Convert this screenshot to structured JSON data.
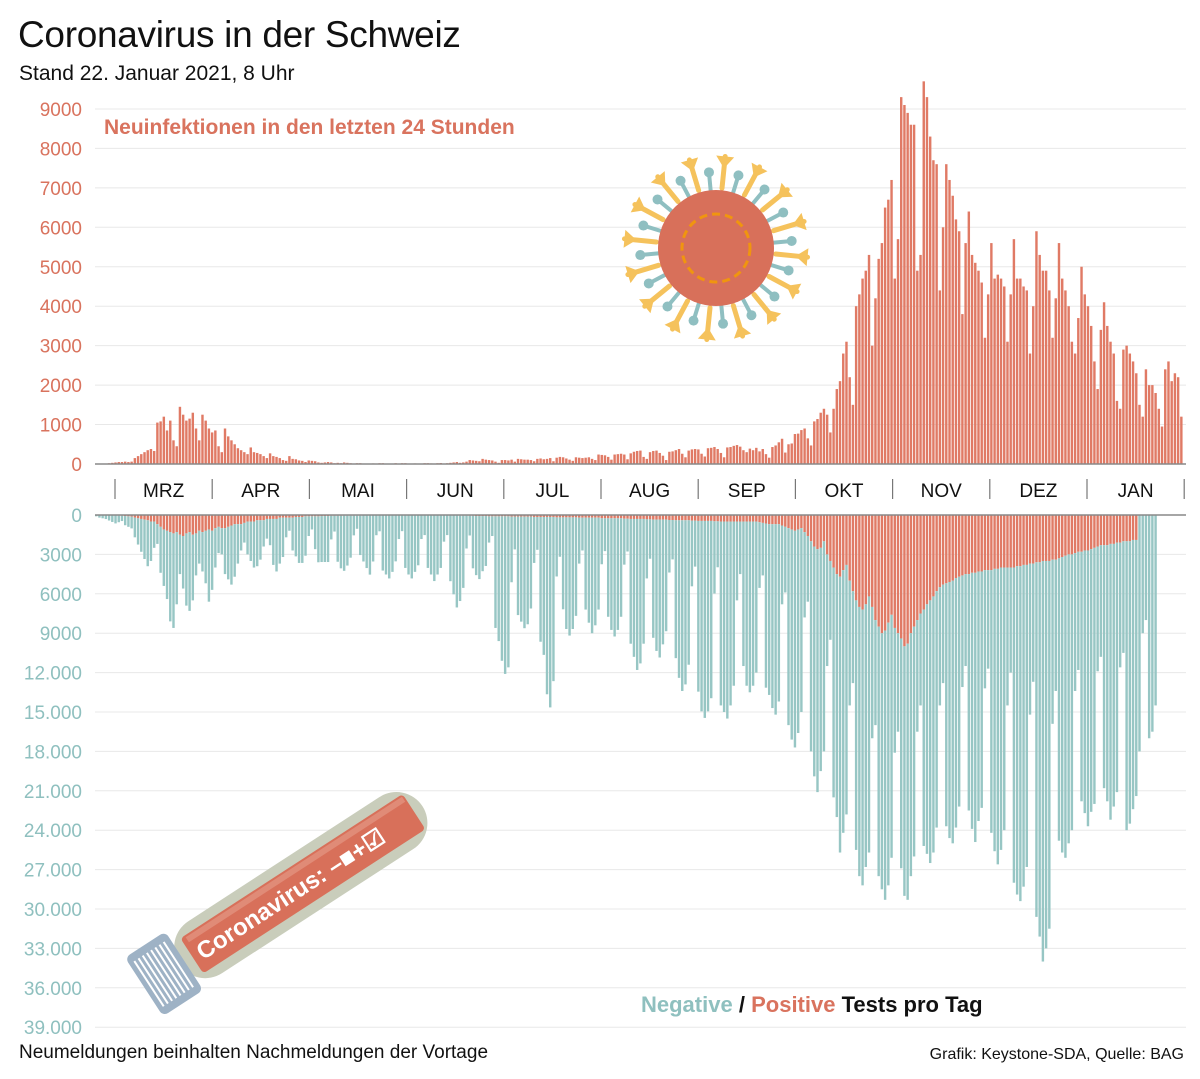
{
  "header": {
    "title": "Coronavirus in der Schweiz",
    "subtitle": "Stand 22. Januar 2021, 8 Uhr"
  },
  "footer": {
    "note": "Neumeldungen beinhalten Nachmeldungen der Vortage",
    "credit": "Grafik: Keystone-SDA, Quelle: BAG"
  },
  "colors": {
    "positive": "#e07a65",
    "negative": "#97c6c4",
    "axis_top_text": "#d9735e",
    "axis_bottom_text": "#8fc0bf"
  },
  "illustrations": {
    "virus": "coronavirus-icon",
    "test_tube": "test-tube-icon",
    "test_tube_label": "Coronavirus: –■+☑"
  },
  "chart_data": [
    {
      "type": "bar",
      "title": "Neuinfektionen in den letzten 24 Stunden",
      "xlabel": "",
      "ylabel": "",
      "ylim": [
        0,
        9000
      ],
      "yticks": [
        "0",
        "1000",
        "2000",
        "3000",
        "4000",
        "5000",
        "6000",
        "7000",
        "8000",
        "9000"
      ],
      "grid": true,
      "start_date": "2020-02-24",
      "end_date": "2021-01-21",
      "month_labels": [
        "MRZ",
        "APR",
        "MAI",
        "JUN",
        "JUL",
        "AUG",
        "SEP",
        "OKT",
        "NOV",
        "DEZ",
        "JAN"
      ],
      "values": [
        0,
        0,
        0,
        0,
        20,
        30,
        40,
        50,
        50,
        60,
        50,
        60,
        150,
        200,
        250,
        300,
        350,
        380,
        330,
        1050,
        1080,
        1200,
        850,
        1100,
        600,
        450,
        1450,
        1250,
        1100,
        1150,
        1300,
        900,
        600,
        1250,
        1100,
        900,
        800,
        850,
        450,
        300,
        900,
        700,
        600,
        500,
        400,
        350,
        300,
        250,
        420,
        300,
        280,
        250,
        200,
        150,
        270,
        200,
        180,
        150,
        100,
        80,
        200,
        130,
        120,
        90,
        80,
        50,
        90,
        80,
        70,
        40,
        30,
        40,
        50,
        40,
        20,
        30,
        20,
        40,
        30,
        20,
        10,
        20,
        20,
        10,
        5,
        10,
        15,
        10,
        20,
        20,
        10,
        5,
        10,
        20,
        10,
        20,
        20,
        10,
        10,
        15,
        5,
        10,
        20,
        20,
        15,
        10,
        20,
        25,
        10,
        20,
        30,
        40,
        50,
        30,
        40,
        60,
        100,
        90,
        80,
        70,
        130,
        110,
        100,
        90,
        60,
        30,
        100,
        100,
        90,
        110,
        60,
        130,
        120,
        110,
        110,
        100,
        70,
        130,
        140,
        120,
        130,
        150,
        70,
        160,
        180,
        170,
        140,
        110,
        80,
        170,
        160,
        150,
        160,
        170,
        130,
        100,
        240,
        230,
        220,
        180,
        110,
        240,
        250,
        260,
        240,
        120,
        270,
        310,
        330,
        340,
        180,
        130,
        300,
        330,
        340,
        280,
        210,
        100,
        310,
        320,
        350,
        380,
        260,
        170,
        340,
        370,
        380,
        370,
        260,
        190,
        400,
        410,
        430,
        380,
        280,
        170,
        420,
        430,
        460,
        480,
        440,
        350,
        300,
        390,
        350,
        410,
        320,
        380,
        250,
        160,
        430,
        470,
        550,
        640,
        290,
        500,
        520,
        760,
        770,
        860,
        900,
        650,
        470,
        1080,
        1140,
        1300,
        1400,
        1250,
        800,
        1400,
        1900,
        2100,
        2800,
        3100,
        2200,
        1500,
        4000,
        4300,
        4700,
        4900,
        5300,
        3000,
        4200,
        5200,
        5600,
        6500,
        6700,
        7200,
        4700,
        5700,
        9300,
        9100,
        8900,
        8600,
        8600,
        4900,
        5300,
        9700,
        9300,
        8300,
        7700,
        7600,
        4400,
        6000,
        7600,
        7200,
        6800,
        6200,
        5900,
        3800,
        5600,
        6400,
        5300,
        5100,
        4900,
        4600,
        3200,
        4300,
        5600,
        4700,
        4800,
        4700,
        4500,
        3100,
        4300,
        5700,
        4700,
        4700,
        4500,
        4400,
        2800,
        4000,
        5900,
        5300,
        4900,
        4900,
        4400,
        3200,
        4200,
        5600,
        4700,
        4400,
        4000,
        3100,
        2800,
        3700,
        5000,
        4300,
        4000,
        3500,
        2600,
        1900,
        3400,
        4100,
        3500,
        3100,
        2800,
        1600,
        1400,
        2900,
        3000,
        2800,
        2600,
        2300,
        1500,
        1200,
        2400,
        2000,
        2000,
        1800,
        1400,
        950,
        2400,
        2600,
        2100,
        2300,
        2200,
        1200
      ]
    },
    {
      "type": "bar",
      "stacked": true,
      "title": "Negative / Positive Tests pro Tag",
      "xlabel": "",
      "ylabel": "",
      "ylim": [
        0,
        39000
      ],
      "yticks": [
        "0",
        "3000",
        "6000",
        "9000",
        "12.000",
        "15.000",
        "18.000",
        "21.000",
        "24.000",
        "27.000",
        "30.000",
        "33.000",
        "36.000",
        "39.000"
      ],
      "grid": true,
      "inverted": true,
      "legend": {
        "negative": "Negative",
        "separator": "/",
        "positive": "Positive",
        "suffix": "Tests pro Tag",
        "placement": "bottom-right"
      },
      "series": [
        {
          "name": "Positive",
          "values": [
            0,
            0,
            0,
            10,
            20,
            30,
            40,
            50,
            60,
            80,
            100,
            120,
            200,
            250,
            300,
            350,
            400,
            500,
            500,
            700,
            900,
            1100,
            1200,
            1300,
            1400,
            1300,
            1500,
            1600,
            1400,
            1300,
            1500,
            1400,
            1200,
            1300,
            1200,
            1100,
            1200,
            1000,
            900,
            1000,
            1000,
            900,
            800,
            700,
            700,
            700,
            600,
            500,
            500,
            500,
            400,
            400,
            400,
            300,
            300,
            300,
            300,
            200,
            200,
            200,
            200,
            200,
            150,
            150,
            150,
            100,
            100,
            100,
            100,
            100,
            80,
            80,
            80,
            60,
            60,
            60,
            60,
            50,
            50,
            50,
            50,
            50,
            50,
            40,
            40,
            40,
            40,
            40,
            40,
            30,
            30,
            30,
            30,
            30,
            30,
            30,
            30,
            30,
            30,
            30,
            30,
            30,
            30,
            30,
            30,
            30,
            30,
            30,
            30,
            30,
            40,
            40,
            40,
            50,
            50,
            50,
            60,
            60,
            80,
            80,
            80,
            80,
            100,
            100,
            100,
            100,
            100,
            100,
            100,
            120,
            120,
            120,
            120,
            120,
            120,
            120,
            150,
            150,
            150,
            150,
            150,
            150,
            150,
            180,
            180,
            180,
            180,
            180,
            180,
            180,
            200,
            200,
            200,
            200,
            200,
            200,
            200,
            250,
            250,
            250,
            250,
            250,
            250,
            250,
            280,
            280,
            300,
            300,
            300,
            300,
            300,
            330,
            330,
            350,
            350,
            350,
            350,
            350,
            380,
            380,
            400,
            400,
            400,
            400,
            400,
            430,
            430,
            450,
            450,
            450,
            450,
            450,
            480,
            480,
            500,
            500,
            500,
            500,
            500,
            500,
            500,
            500,
            500,
            500,
            500,
            500,
            550,
            600,
            650,
            700,
            700,
            700,
            700,
            800,
            900,
            1000,
            1100,
            1200,
            1100,
            1000,
            1300,
            1600,
            2000,
            2400,
            2600,
            2500,
            2000,
            3000,
            3500,
            4000,
            4500,
            4700,
            4200,
            3800,
            5000,
            5800,
            6500,
            7000,
            7200,
            6800,
            6200,
            7000,
            8000,
            8500,
            9000,
            8800,
            8200,
            7600,
            8600,
            9000,
            9400,
            10000,
            9800,
            9000,
            8500,
            8000,
            7500,
            7200,
            6800,
            6500,
            6200,
            5800,
            5500,
            5300,
            5200,
            5100,
            5000,
            4800,
            4700,
            4600,
            4500,
            4500,
            4400,
            4400,
            4300,
            4300,
            4200,
            4200,
            4200,
            4100,
            4100,
            4000,
            4000,
            4000,
            4000,
            4000,
            3900,
            3900,
            3800,
            3800,
            3700,
            3700,
            3600,
            3600,
            3500,
            3500,
            3500,
            3400,
            3400,
            3300,
            3200,
            3100,
            3000,
            3000,
            2900,
            2800,
            2800,
            2700,
            2700,
            2600,
            2500,
            2400,
            2300,
            2300,
            2300,
            2200,
            2200,
            2100,
            2100,
            2000,
            2000,
            2000,
            1900,
            1900
          ]
        },
        {
          "name": "Negative",
          "values": [
            100,
            200,
            250,
            300,
            400,
            500,
            600,
            500,
            400,
            700,
            800,
            900,
            1500,
            2000,
            2500,
            3000,
            3500,
            3000,
            2000,
            1500,
            3500,
            4300,
            5200,
            6800,
            7200,
            5500,
            3000,
            4000,
            5500,
            6000,
            5000,
            3200,
            2500,
            3000,
            4000,
            5500,
            4500,
            3000,
            2000,
            2000,
            3500,
            4000,
            4500,
            4000,
            3000,
            2000,
            1500,
            2500,
            3000,
            3500,
            3500,
            3000,
            2000,
            1500,
            2000,
            3500,
            4000,
            3500,
            3000,
            1500,
            1000,
            2500,
            3000,
            3500,
            3500,
            3000,
            1500,
            1000,
            2500,
            3500,
            3500,
            3500,
            3500,
            1800,
            1200,
            3500,
            4000,
            4200,
            3800,
            3200,
            1500,
            1000,
            3000,
            3500,
            4000,
            4500,
            3500,
            1500,
            1200,
            4200,
            4500,
            4800,
            4300,
            3500,
            1800,
            1200,
            4000,
            4500,
            4800,
            4300,
            3800,
            1800,
            1500,
            4000,
            4500,
            5000,
            4500,
            4000,
            2000,
            1500,
            5000,
            6000,
            7000,
            6500,
            5500,
            2500,
            1500,
            4000,
            4500,
            4800,
            4200,
            3800,
            2000,
            1500,
            8500,
            9500,
            11000,
            12000,
            11500,
            5000,
            2500,
            7500,
            8000,
            8500,
            8200,
            7000,
            3500,
            2500,
            9500,
            10500,
            13500,
            14500,
            12500,
            4500,
            3000,
            7000,
            8500,
            9000,
            8500,
            7500,
            3500,
            2500,
            7000,
            8000,
            8800,
            8200,
            7000,
            3500,
            2500,
            7500,
            8500,
            9000,
            8500,
            7500,
            3500,
            2500,
            9500,
            10500,
            11500,
            11000,
            9500,
            4500,
            3000,
            9000,
            10000,
            10500,
            9500,
            8500,
            4000,
            3000,
            10500,
            12000,
            13000,
            12500,
            11000,
            5000,
            3500,
            13000,
            14500,
            15000,
            14500,
            13500,
            5500,
            3500,
            14000,
            14500,
            15000,
            14000,
            12500,
            6000,
            4000,
            11000,
            12500,
            13000,
            12500,
            11500,
            5000,
            4000,
            12500,
            13000,
            14000,
            14500,
            13500,
            6000,
            5000,
            15000,
            16000,
            16500,
            15500,
            14000,
            6500,
            5000,
            16000,
            17500,
            18500,
            17000,
            16000,
            8500,
            6000,
            17500,
            18500,
            21000,
            20000,
            19000,
            9500,
            7000,
            19000,
            20500,
            21000,
            20000,
            19500,
            10000,
            8000,
            19000,
            19500,
            20500,
            20000,
            18500,
            9500,
            7500,
            17500,
            19000,
            19500,
            18500,
            17500,
            8500,
            7000,
            18000,
            19000,
            20000,
            19500,
            18000,
            9000,
            7500,
            18500,
            19500,
            20000,
            19000,
            17500,
            8500,
            7000,
            18000,
            19500,
            20500,
            19000,
            18000,
            9000,
            7500,
            20000,
            21500,
            22500,
            21500,
            20000,
            10500,
            8000,
            24000,
            25000,
            25500,
            24500,
            23000,
            11500,
            9000,
            27000,
            28500,
            30500,
            29500,
            28000,
            12500,
            10000,
            21500,
            22500,
            23000,
            22000,
            21000,
            10500,
            9000,
            19000,
            20000,
            21000,
            20000,
            19500,
            9500,
            8500,
            18500,
            19500,
            21000,
            20000,
            19000,
            9500,
            8500,
            22000,
            21500,
            20500,
            19500,
            18000,
            9000,
            8000,
            17000,
            16500,
            14500
          ]
        }
      ]
    }
  ]
}
